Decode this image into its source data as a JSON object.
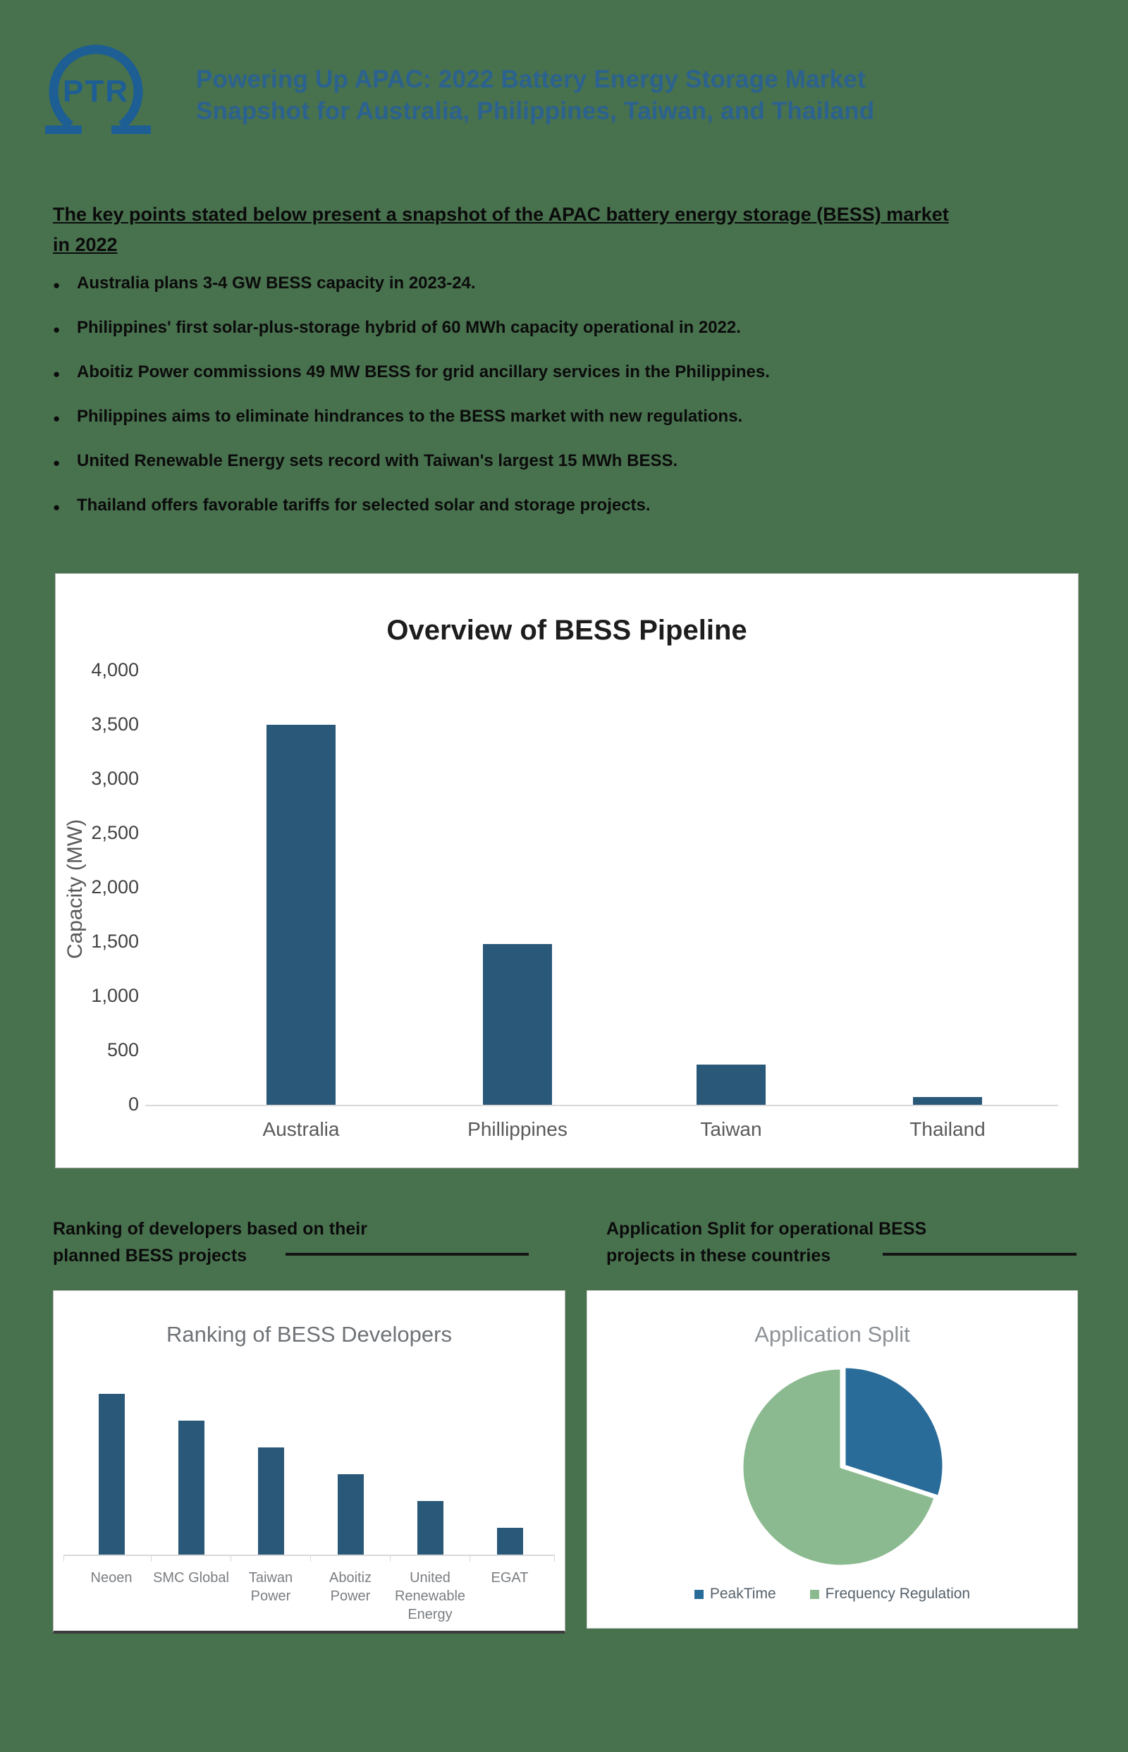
{
  "header": {
    "logo_text": "PTR",
    "title_line1": "Powering Up APAC: 2022 Battery Energy Storage Market",
    "title_line2": "Snapshot for Australia, Philippines, Taiwan, and Thailand"
  },
  "intro": {
    "heading": "The key points stated below present a snapshot of the APAC battery energy storage (BESS) market in 2022"
  },
  "bullets": [
    "Australia plans 3-4 GW BESS capacity in 2023-24.",
    "Philippines' first solar-plus-storage hybrid of 60 MWh capacity operational in 2022.",
    "Aboitiz Power commissions 49 MW BESS for grid ancillary services in the Philippines.",
    "Philippines aims to eliminate hindrances to the BESS market with new regulations.",
    "United Renewable Energy sets record with Taiwan's largest 15 MWh BESS.",
    "Thailand offers favorable tariffs for selected solar and storage projects."
  ],
  "sections": {
    "left_heading_line1": "Ranking of developers based on their",
    "left_heading_line2": "planned BESS projects",
    "right_heading_line1": "Application Split for operational BESS",
    "right_heading_line2": "projects in these countries"
  },
  "colors": {
    "page_background": "#48714E",
    "title_blue": "#2B628F",
    "logo_blue": "#1D5E94",
    "bar_blue": "#2A5878",
    "pie_blue": "#2A6C99",
    "pie_green": "#8CBA90"
  },
  "chart_data": [
    {
      "id": "pipeline",
      "type": "bar",
      "title": "Overview of BESS Pipeline",
      "categories": [
        "Australia",
        "Phillippines",
        "Taiwan",
        "Thailand"
      ],
      "values": [
        3500,
        1480,
        370,
        70
      ],
      "xlabel": "",
      "ylabel": "Capacity (MW)",
      "ylim": [
        0,
        4000
      ],
      "ytick_step": 500,
      "grid": false,
      "bar_color": "#2A5878"
    },
    {
      "id": "developers",
      "type": "bar",
      "title": "Ranking of BESS Developers",
      "categories": [
        "Neoen",
        "SMC Global",
        "Taiwan Power",
        "Aboitiz Power",
        "United Renewable Energy",
        "EGAT"
      ],
      "values": [
        6,
        5,
        4,
        3,
        2,
        1
      ],
      "ylabel": "",
      "ylim": [
        0,
        6
      ],
      "yaxis_labels_shown": false,
      "note": "bar heights are relative ranking (no value axis shown)",
      "bar_color": "#2A5878"
    },
    {
      "id": "application_split",
      "type": "pie",
      "title": "Application Split",
      "labels": [
        "PeakTime",
        "Frequency Regulation"
      ],
      "values": [
        30,
        70
      ],
      "colors": [
        "#2A6C99",
        "#8CBA90"
      ],
      "start_angle_deg": 0,
      "direction": "clockwise",
      "legend_position": "bottom"
    }
  ]
}
